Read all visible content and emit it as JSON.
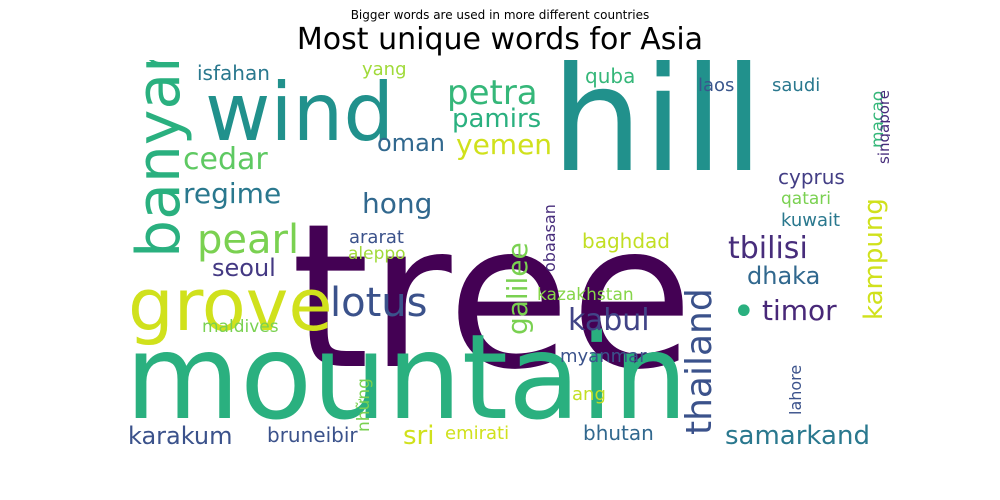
{
  "header": {
    "subtitle": "Bigger words are used in more different countries",
    "title": "Most unique words for Asia"
  },
  "cloud": {
    "words": [
      {
        "text": "tree",
        "color": "#440154"
      },
      {
        "text": "mountain",
        "color": "#2ab07f"
      },
      {
        "text": "hill",
        "color": "#21918c"
      },
      {
        "text": "wind",
        "color": "#21918c"
      },
      {
        "text": "grove",
        "color": "#d0e11c"
      },
      {
        "text": "lotus",
        "color": "#3b528b"
      },
      {
        "text": "banyan",
        "color": "#2ab07f"
      },
      {
        "text": "petra",
        "color": "#35b779"
      },
      {
        "text": "pamirs",
        "color": "#2ab07f"
      },
      {
        "text": "pearl",
        "color": "#7ad151"
      },
      {
        "text": "cedar",
        "color": "#5ec962"
      },
      {
        "text": "regime",
        "color": "#2a788e"
      },
      {
        "text": "yemen",
        "color": "#d0e11c"
      },
      {
        "text": "oman",
        "color": "#31688e"
      },
      {
        "text": "hong",
        "color": "#31688e"
      },
      {
        "text": "seoul",
        "color": "#443983"
      },
      {
        "text": "galilee",
        "color": "#7ad151"
      },
      {
        "text": "kabul",
        "color": "#414487"
      },
      {
        "text": "thailand",
        "color": "#3b528b"
      },
      {
        "text": "kampung",
        "color": "#d0e11c"
      },
      {
        "text": "tbilisi",
        "color": "#472d7b"
      },
      {
        "text": "dhaka",
        "color": "#31688e"
      },
      {
        "text": "timor",
        "color": "#482878"
      },
      {
        "text": "samarkand",
        "color": "#2a788e"
      },
      {
        "text": "karakum",
        "color": "#3b528b"
      },
      {
        "text": "sri",
        "color": "#d0e11c"
      },
      {
        "text": "bruneibir",
        "color": "#3b528b"
      },
      {
        "text": "emirati",
        "color": "#d0e11c"
      },
      {
        "text": "bhutan",
        "color": "#31688e"
      },
      {
        "text": "isfahan",
        "color": "#2a788e"
      },
      {
        "text": "yang",
        "color": "#a0da39"
      },
      {
        "text": "quba",
        "color": "#35b779"
      },
      {
        "text": "laos",
        "color": "#39568c"
      },
      {
        "text": "saudi",
        "color": "#2a788e"
      },
      {
        "text": "macao",
        "color": "#35b779"
      },
      {
        "text": "singapore",
        "color": "#472d7b"
      },
      {
        "text": "cyprus",
        "color": "#433e85"
      },
      {
        "text": "qatari",
        "color": "#7ad151"
      },
      {
        "text": "kuwait",
        "color": "#2a788e"
      },
      {
        "text": "ararat",
        "color": "#3b528b"
      },
      {
        "text": "aleppo",
        "color": "#a0da39"
      },
      {
        "text": "obaasan",
        "color": "#472d7b"
      },
      {
        "text": "baghdad",
        "color": "#c2df23"
      },
      {
        "text": "kazakhstan",
        "color": "#86d549"
      },
      {
        "text": "maldives",
        "color": "#7ad151"
      },
      {
        "text": "những",
        "color": "#7ad151"
      },
      {
        "text": "myanmar",
        "color": "#3b528b"
      },
      {
        "text": "ang",
        "color": "#c2df23"
      },
      {
        "text": "lahore",
        "color": "#3b528b"
      },
      {
        "text": "•",
        "color": "#2ab07f"
      }
    ]
  }
}
